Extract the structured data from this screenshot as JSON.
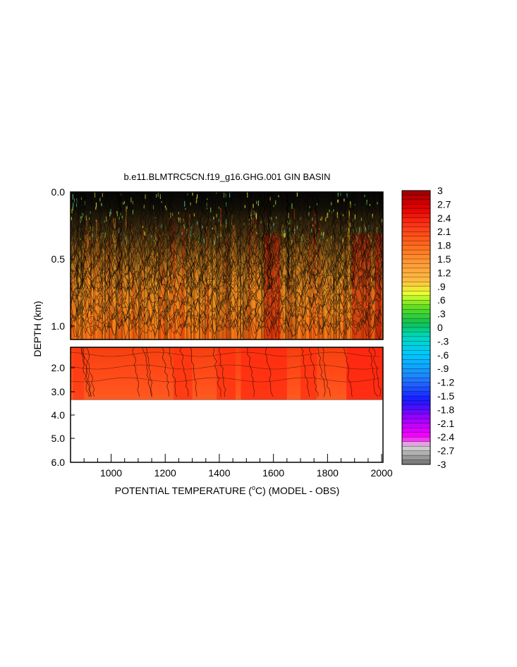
{
  "chart_data": {
    "type": "heatmap",
    "title": "b.e11.BLMTRC5CN.f19_g16.GHG.001 GIN BASIN",
    "xlabel_parts": [
      "POTENTIAL TEMPERATURE (",
      "o",
      "C) (MODEL - OBS)"
    ],
    "ylabel": "DEPTH (km)",
    "xlim": [
      850,
      2005
    ],
    "x_ticks": [
      1000,
      1200,
      1400,
      1600,
      1800,
      2000
    ],
    "upper_panel": {
      "ylim": [
        0.0,
        1.1
      ],
      "y_ticks": [
        {
          "value": 0.0,
          "label": "0.0"
        },
        {
          "value": 0.5,
          "label": "0.5"
        },
        {
          "value": 1.0,
          "label": "1.0"
        }
      ],
      "data_range_km": [
        0.0,
        1.1
      ]
    },
    "lower_panel": {
      "ylim": [
        1.1,
        6.0
      ],
      "y_ticks": [
        {
          "value": 2.0,
          "label": "2.0"
        },
        {
          "value": 3.0,
          "label": "3.0"
        },
        {
          "value": 4.0,
          "label": "4.0"
        },
        {
          "value": 5.0,
          "label": "5.0"
        },
        {
          "value": 6.0,
          "label": "6.0"
        }
      ],
      "data_range_km": [
        1.1,
        3.35
      ]
    },
    "colorbar": {
      "min": -3,
      "max": 3,
      "step": 0.1,
      "labels": [
        "3",
        "2.7",
        "2.4",
        "2.1",
        "1.8",
        "1.5",
        "1.2",
        ".9",
        ".6",
        ".3",
        "0",
        "-.3",
        "-.6",
        "-.9",
        "-1.2",
        "-1.5",
        "-1.8",
        "-2.1",
        "-2.4",
        "-2.7",
        "-3"
      ],
      "color_stops": [
        {
          "v": 3.0,
          "c": "#9a0000"
        },
        {
          "v": 2.6,
          "c": "#e60000"
        },
        {
          "v": 2.2,
          "c": "#ff3a1a"
        },
        {
          "v": 1.8,
          "c": "#ff6a1a"
        },
        {
          "v": 1.4,
          "c": "#ff9a38"
        },
        {
          "v": 1.0,
          "c": "#ffc040"
        },
        {
          "v": 0.75,
          "c": "#e8ff30"
        },
        {
          "v": 0.45,
          "c": "#60e020"
        },
        {
          "v": 0.1,
          "c": "#10c050"
        },
        {
          "v": -0.2,
          "c": "#00d8c0"
        },
        {
          "v": -0.6,
          "c": "#00c8ff"
        },
        {
          "v": -1.1,
          "c": "#2080ff"
        },
        {
          "v": -1.6,
          "c": "#1818ff"
        },
        {
          "v": -2.0,
          "c": "#a000ff"
        },
        {
          "v": -2.4,
          "c": "#ff00ff"
        },
        {
          "v": -2.6,
          "c": "#d8d8d8"
        },
        {
          "v": -3.0,
          "c": "#707070"
        }
      ]
    }
  }
}
